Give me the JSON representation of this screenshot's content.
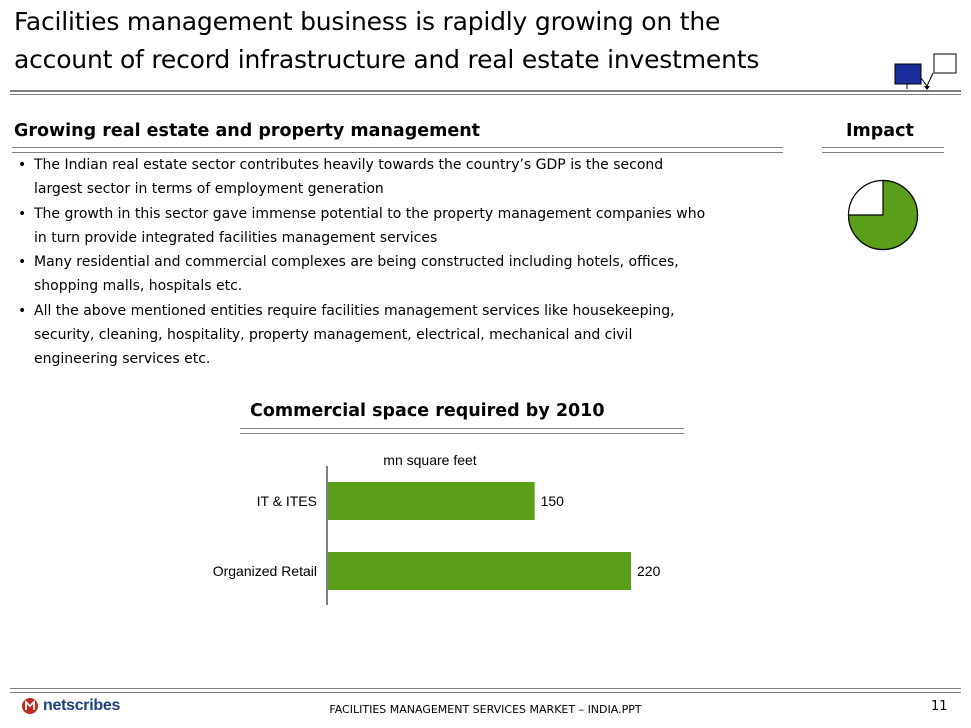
{
  "slide": {
    "title_line1": "Facilities management business is rapidly growing on the",
    "title_line2": "account of record infrastructure and real estate investments"
  },
  "section": {
    "heading": "Growing real estate and property management",
    "impact_label": "Impact",
    "bullets": [
      {
        "line1": "The Indian real estate sector contributes heavily towards the country’s GDP is the second",
        "line2": "largest sector in terms of employment generation"
      },
      {
        "line1": "The growth in this sector gave immense potential to the property management companies who",
        "line2": "in turn provide integrated facilities management services"
      },
      {
        "line1": "Many residential and commercial complexes are being constructed including hotels, offices,",
        "line2": "shopping malls, hospitals etc."
      },
      {
        "line1": "All the above mentioned entities require facilities management services like housekeeping,",
        "line2": "security, cleaning, hospitality, property management, electrical, mechanical and civil",
        "line3": "engineering services etc."
      }
    ],
    "bullet_symbol": "•"
  },
  "impact": {
    "filled_fraction": 0.75,
    "fill_color": "#5a9e1a",
    "empty_color": "#ffffff"
  },
  "chart_data": {
    "type": "bar",
    "orientation": "horizontal",
    "title": "Commercial space required by 2010",
    "unit_label": "mn square feet",
    "categories": [
      "IT & ITES",
      "Organized Retail"
    ],
    "values": [
      150,
      220
    ],
    "xlim": [
      0,
      220
    ],
    "color": "#5a9e1a"
  },
  "footer": {
    "logo_text": "netscribes",
    "center_text": "FACILITIES MANAGEMENT SERVICES MARKET – INDIA.PPT",
    "page_number": "11"
  }
}
